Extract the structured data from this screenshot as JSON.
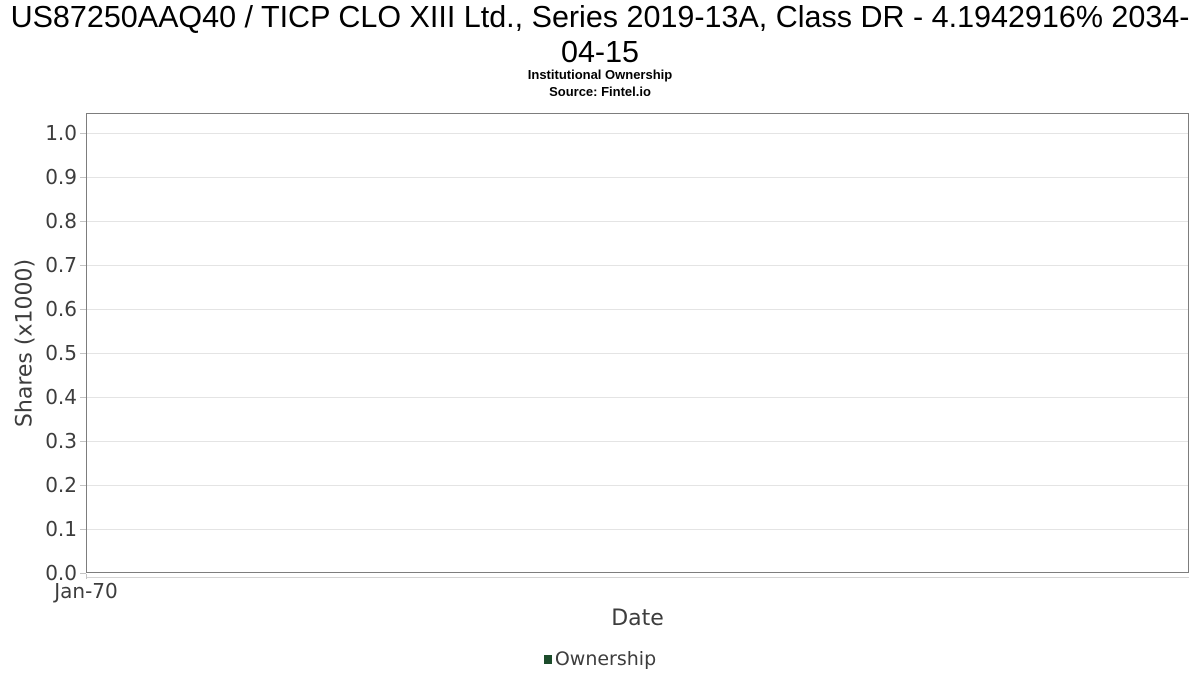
{
  "chart_data": {
    "type": "line",
    "title": "US87250AAQ40 / TICP CLO XIII Ltd., Series 2019-13A, Class DR - 4.1942916% 2034-04-15",
    "subtitle": "Institutional Ownership",
    "source": "Source: Fintel.io",
    "xlabel": "Date",
    "ylabel": "Shares (x1000)",
    "x_ticks": [
      "Jan-70"
    ],
    "y_ticks": [
      "0.0",
      "0.1",
      "0.2",
      "0.3",
      "0.4",
      "0.5",
      "0.6",
      "0.7",
      "0.8",
      "0.9",
      "1.0"
    ],
    "ylim": [
      0.0,
      1.0
    ],
    "grid": "horizontal",
    "legend_position": "bottom-center",
    "series": [
      {
        "name": "Ownership",
        "color": "#1c4c2b",
        "x": [],
        "values": []
      }
    ]
  },
  "colors": {
    "legend_marker": "#1c4c2b",
    "gridline": "#e4e4e4",
    "plot_border": "#7d7d7d",
    "tick_mark": "#c4c4c4",
    "axis_text": "#3d3d3d",
    "title_text": "#000000"
  }
}
